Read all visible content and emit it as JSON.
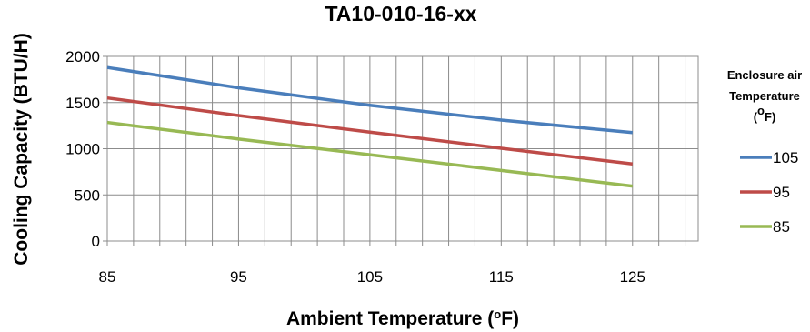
{
  "chart_data": {
    "type": "line",
    "title": "TA10-010-16-xx",
    "xlabel": "Ambient Temperature (°F)",
    "ylabel": "Cooling Capacity (BTU/H)",
    "xlim": [
      85,
      130
    ],
    "ylim": [
      0,
      2000
    ],
    "x_ticks": [
      85,
      95,
      105,
      115,
      125
    ],
    "y_ticks": [
      0,
      500,
      1000,
      1500,
      2000
    ],
    "x_minor_step": 2,
    "grid": true,
    "legend": {
      "title_lines": [
        "Enclosure air",
        "Temperature",
        "(°F)"
      ],
      "placement": "right"
    },
    "series": [
      {
        "name": "105",
        "color": "#4a7ebb",
        "x": [
          85,
          95,
          105,
          115,
          125
        ],
        "y": [
          1880,
          1660,
          1470,
          1310,
          1175
        ]
      },
      {
        "name": "95",
        "color": "#be4b48",
        "x": [
          85,
          95,
          105,
          115,
          125
        ],
        "y": [
          1550,
          1360,
          1180,
          1005,
          835
        ]
      },
      {
        "name": "85",
        "color": "#98b954",
        "x": [
          85,
          95,
          105,
          115,
          125
        ],
        "y": [
          1285,
          1105,
          935,
          765,
          595
        ]
      }
    ]
  }
}
